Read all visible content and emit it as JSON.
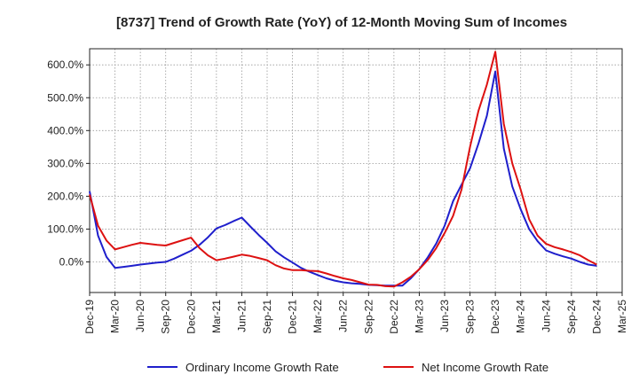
{
  "chart_data": {
    "type": "line",
    "title": "[8737]  Trend of Growth Rate (YoY) of 12-Month Moving Sum of Incomes",
    "xlabel": "",
    "ylabel": "",
    "x_tick_labels": [
      "Dec-19",
      "Mar-20",
      "Jun-20",
      "Sep-20",
      "Dec-20",
      "Mar-21",
      "Jun-21",
      "Sep-21",
      "Dec-21",
      "Mar-22",
      "Jun-22",
      "Sep-22",
      "Dec-22",
      "Mar-23",
      "Jun-23",
      "Sep-23",
      "Dec-23",
      "Mar-24",
      "Jun-24",
      "Sep-24",
      "Dec-24",
      "Mar-25"
    ],
    "y_ticks": [
      0,
      100,
      200,
      300,
      400,
      500,
      600
    ],
    "y_tick_labels": [
      "0.0%",
      "100.0%",
      "200.0%",
      "300.0%",
      "400.0%",
      "500.0%",
      "600.0%"
    ],
    "ylim": [
      -90,
      640
    ],
    "grid": true,
    "legend_position": "bottom",
    "months": [
      "Dec-19",
      "Jan-20",
      "Feb-20",
      "Mar-20",
      "Apr-20",
      "May-20",
      "Jun-20",
      "Jul-20",
      "Aug-20",
      "Sep-20",
      "Oct-20",
      "Nov-20",
      "Dec-20",
      "Jan-21",
      "Feb-21",
      "Mar-21",
      "Apr-21",
      "May-21",
      "Jun-21",
      "Jul-21",
      "Aug-21",
      "Sep-21",
      "Oct-21",
      "Nov-21",
      "Dec-21",
      "Jan-22",
      "Feb-22",
      "Mar-22",
      "Apr-22",
      "May-22",
      "Jun-22",
      "Jul-22",
      "Aug-22",
      "Sep-22",
      "Oct-22",
      "Nov-22",
      "Dec-22",
      "Jan-23",
      "Feb-23",
      "Mar-23",
      "Apr-23",
      "May-23",
      "Jun-23",
      "Jul-23",
      "Aug-23",
      "Sep-23",
      "Oct-23",
      "Nov-23",
      "Dec-23",
      "Jan-24",
      "Feb-24",
      "Mar-24",
      "Apr-24",
      "May-24",
      "Jun-24",
      "Jul-24",
      "Aug-24",
      "Sep-24",
      "Oct-24",
      "Nov-24",
      "Dec-24"
    ],
    "series": [
      {
        "name": "Ordinary Income Growth Rate",
        "color": "#1f1fcc",
        "values": [
          215,
          80,
          15,
          -18,
          -15,
          -12,
          -8,
          -5,
          -2,
          0,
          10,
          22,
          34,
          52,
          75,
          102,
          112,
          124,
          135,
          108,
          82,
          58,
          32,
          14,
          -2,
          -18,
          -30,
          -40,
          -50,
          -57,
          -62,
          -65,
          -67,
          -70,
          -71,
          -72,
          -72,
          -72,
          -50,
          -22,
          14,
          56,
          110,
          185,
          235,
          285,
          360,
          445,
          580,
          345,
          230,
          160,
          100,
          63,
          35,
          25,
          17,
          10,
          0,
          -8,
          -12
        ]
      },
      {
        "name": "Net Income Growth Rate",
        "color": "#dd1111",
        "values": [
          205,
          110,
          65,
          38,
          45,
          52,
          58,
          55,
          52,
          50,
          58,
          66,
          74,
          42,
          20,
          5,
          10,
          16,
          22,
          18,
          12,
          5,
          -10,
          -20,
          -25,
          -25,
          -27,
          -28,
          -35,
          -43,
          -50,
          -55,
          -62,
          -69,
          -70,
          -74,
          -75,
          -62,
          -45,
          -22,
          6,
          42,
          88,
          140,
          220,
          350,
          460,
          540,
          640,
          420,
          300,
          220,
          130,
          80,
          55,
          45,
          38,
          30,
          20,
          5,
          -8
        ]
      }
    ]
  }
}
